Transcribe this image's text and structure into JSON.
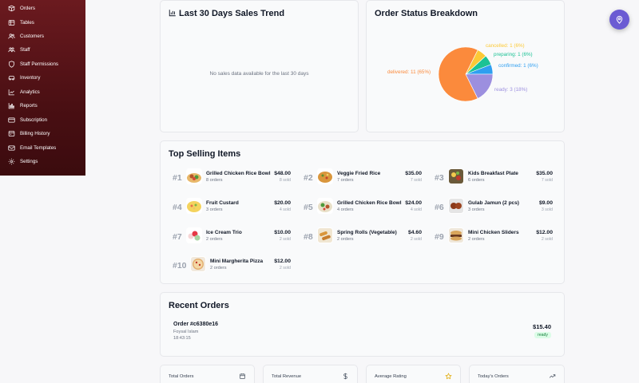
{
  "sidebar": {
    "items": [
      {
        "label": "Orders",
        "icon": "box-icon"
      },
      {
        "label": "Tables",
        "icon": "table-icon"
      },
      {
        "label": "Customers",
        "icon": "users-icon"
      },
      {
        "label": "Staff",
        "icon": "staff-icon"
      },
      {
        "label": "Staff Permissions",
        "icon": "shield-icon"
      },
      {
        "label": "Inventory",
        "icon": "car-icon"
      },
      {
        "label": "Analytics",
        "icon": "analytics-icon"
      },
      {
        "label": "Reports",
        "icon": "reports-icon"
      },
      {
        "label": "Subscription",
        "icon": "card-icon"
      },
      {
        "label": "Billing History",
        "icon": "receipt-icon"
      },
      {
        "label": "Email Templates",
        "icon": "mail-icon"
      },
      {
        "label": "Settings",
        "icon": "gear-icon"
      }
    ]
  },
  "sales_trend": {
    "title": "Last 30 Days Sales Trend",
    "empty_message": "No sales data available for the last 30 days"
  },
  "order_status": {
    "title": "Order Status Breakdown",
    "labels": {
      "delivered": "delivered: 11 (65%)",
      "cancelled": "cancelled: 1 (6%)",
      "preparing": "preparing: 1 (6%)",
      "confirmed": "confirmed: 1 (6%)",
      "ready": "ready: 3 (18%)"
    }
  },
  "chart_data": {
    "type": "pie",
    "title": "Order Status Breakdown",
    "slices": [
      {
        "label": "delivered",
        "value": 11,
        "percent": 65,
        "color": "#fb8a3c"
      },
      {
        "label": "cancelled",
        "value": 1,
        "percent": 6,
        "color": "#fcc936"
      },
      {
        "label": "preparing",
        "value": 1,
        "percent": 6,
        "color": "#1cc295"
      },
      {
        "label": "confirmed",
        "value": 1,
        "percent": 6,
        "color": "#2f9ff0"
      },
      {
        "label": "ready",
        "value": 3,
        "percent": 18,
        "color": "#9c8fdf"
      }
    ]
  },
  "top_selling": {
    "title": "Top Selling Items",
    "items": [
      {
        "rank": "#1",
        "name": "Grilled Chicken Rice Bowl",
        "orders": "8 orders",
        "price": "$48.00",
        "sold": "8 sold"
      },
      {
        "rank": "#2",
        "name": "Veggie Fried Rice",
        "orders": "7 orders",
        "price": "$35.00",
        "sold": "7 sold"
      },
      {
        "rank": "#3",
        "name": "Kids Breakfast Plate",
        "orders": "6 orders",
        "price": "$35.00",
        "sold": "7 sold"
      },
      {
        "rank": "#4",
        "name": "Fruit Custard",
        "orders": "3 orders",
        "price": "$20.00",
        "sold": "4 sold"
      },
      {
        "rank": "#5",
        "name": "Grilled Chicken Rice Bowl",
        "orders": "4 orders",
        "price": "$24.00",
        "sold": "4 sold"
      },
      {
        "rank": "#6",
        "name": "Gulab Jamun (2 pcs)",
        "orders": "3 orders",
        "price": "$9.00",
        "sold": "3 sold"
      },
      {
        "rank": "#7",
        "name": "Ice Cream Trio",
        "orders": "2 orders",
        "price": "$10.00",
        "sold": "2 sold"
      },
      {
        "rank": "#8",
        "name": "Spring Rolls (Vegetable)",
        "orders": "2 orders",
        "price": "$4.60",
        "sold": "2 sold"
      },
      {
        "rank": "#9",
        "name": "Mini Chicken Sliders",
        "orders": "2 orders",
        "price": "$12.00",
        "sold": "2 sold"
      },
      {
        "rank": "#10",
        "name": "Mini Margherita Pizza",
        "orders": "2 orders",
        "price": "$12.00",
        "sold": "2 sold"
      }
    ]
  },
  "recent_orders": {
    "title": "Recent Orders",
    "orders": [
      {
        "id": "Order #c6380e16",
        "customer": "Foysal Islam",
        "time": "18:43:15",
        "total": "$15.40",
        "status": "ready"
      }
    ]
  },
  "stats": [
    {
      "label": "Total Orders",
      "icon": "calendar-icon"
    },
    {
      "label": "Total Revenue",
      "icon": "dollar-icon"
    },
    {
      "label": "Average Rating",
      "icon": "star-icon"
    },
    {
      "label": "Today's Orders",
      "icon": "trend-icon"
    }
  ],
  "colors": {
    "sidebar": "#5a1419",
    "fab": "#6b5bd3",
    "delivered": "#fb8a3c",
    "cancelled": "#fcc936",
    "preparing": "#1cc295",
    "confirmed": "#2f9ff0",
    "ready": "#9c8fdf",
    "status_ready_bg": "#dcfce7"
  },
  "fab": {
    "icon": "location-pin-icon"
  }
}
